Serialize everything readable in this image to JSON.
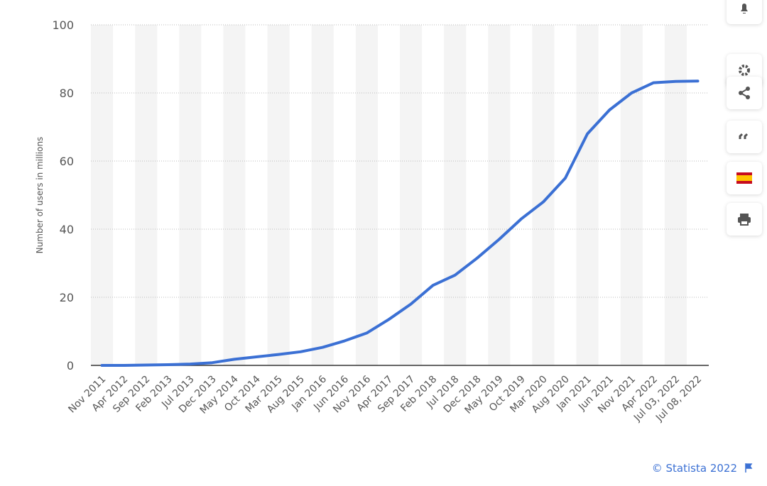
{
  "chart_data": {
    "type": "line",
    "y_label": "Number of users in millions",
    "categories": [
      "Nov 2011",
      "Apr 2012",
      "Sep 2012",
      "Feb 2013",
      "Jul 2013",
      "Dec 2013",
      "May 2014",
      "Oct 2014",
      "Mar 2015",
      "Aug 2015",
      "Jan 2016",
      "Jun 2016",
      "Nov 2016",
      "Apr 2017",
      "Sep 2017",
      "Feb 2018",
      "Jul 2018",
      "Dec 2018",
      "May 2019",
      "Oct 2019",
      "Mar 2020",
      "Aug 2020",
      "Jan 2021",
      "Jun 2021",
      "Nov 2021",
      "Apr 2022",
      "Jul 03, 2022",
      "Jul 08, 2022"
    ],
    "values": [
      0,
      0,
      0.1,
      0.2,
      0.4,
      0.8,
      1.8,
      2.5,
      3.2,
      4.0,
      5.3,
      7.2,
      9.5,
      13.5,
      18,
      23.5,
      26.5,
      31.5,
      37,
      43,
      48,
      55,
      68,
      75,
      80,
      83,
      83.4,
      83.5
    ],
    "color": "#3b70d4",
    "ylim": [
      0,
      100
    ],
    "yticks": [
      0,
      20,
      40,
      60,
      80,
      100
    ],
    "grid": true,
    "source": "© Statista 2022"
  }
}
